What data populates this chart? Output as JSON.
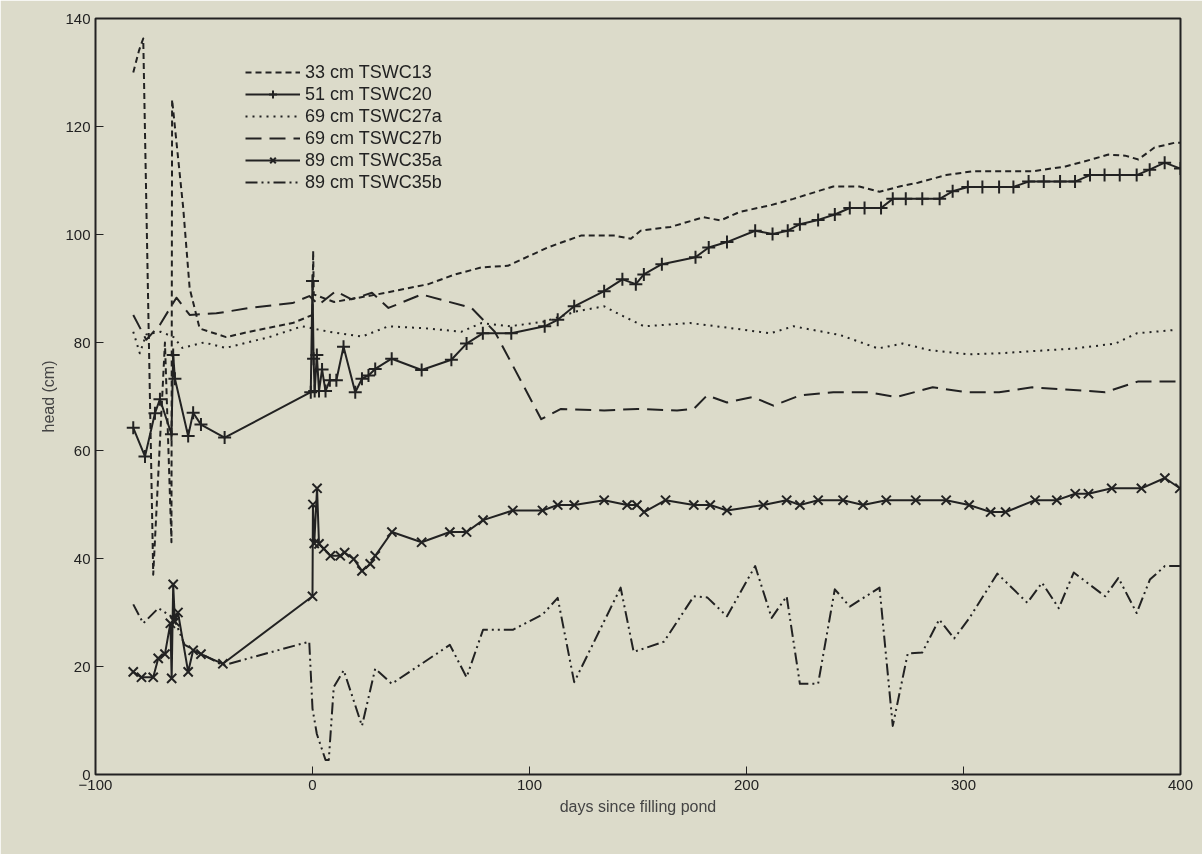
{
  "chart_data": {
    "type": "line",
    "xlabel": "days since filling pond",
    "ylabel": "head (cm)",
    "xlim": [
      -100,
      400
    ],
    "ylim": [
      0,
      140
    ],
    "xticks": [
      -100,
      0,
      100,
      200,
      300,
      400
    ],
    "yticks": [
      0,
      20,
      40,
      60,
      80,
      100,
      120,
      140
    ],
    "grid": false,
    "legend": "top left",
    "series": [
      {
        "name": "33 cm TSWC13",
        "color": "#222222",
        "line_style": "dashed",
        "marker": "none",
        "x": [
          -82.6,
          -80,
          -78,
          -73.4,
          -68,
          -65,
          -64.7,
          -59.6,
          -56.6,
          -52,
          -39.8,
          -29,
          -9.2,
          0,
          0.3,
          0.6,
          10,
          29.7,
          53.4,
          65.6,
          77.8,
          90,
          108.4,
          123.7,
          139,
          146.7,
          151.2,
          165,
          180.3,
          188,
          197,
          210.9,
          221.6,
          240,
          252,
          261.3,
          270.5,
          279,
          292,
          304,
          331.7,
          347,
          359,
          366.8,
          374.5,
          380.6,
          388,
          397.4,
          400
        ],
        "values": [
          130,
          134,
          136.3,
          37,
          80,
          43,
          125,
          105,
          90,
          82.6,
          81,
          82,
          83.6,
          85.1,
          97,
          88.9,
          87.5,
          88.9,
          90.8,
          92.6,
          93.9,
          94.2,
          97.6,
          99.8,
          99.8,
          99.2,
          100.7,
          101.4,
          103.2,
          102.6,
          104.2,
          105.4,
          106.6,
          108.9,
          108.9,
          107.9,
          108.9,
          109.6,
          111,
          111.7,
          111.7,
          112.6,
          113.9,
          114.8,
          114.6,
          113.9,
          116.1,
          117,
          117
        ]
      },
      {
        "name": "51 cm TSWC20",
        "color": "#222222",
        "line_style": "solid",
        "marker": "cross",
        "x": [
          -82.6,
          -77.2,
          -72.6,
          -70.3,
          -65,
          -64.2,
          -63.4,
          -57.3,
          -55,
          -51.4,
          -40.5,
          -0.8,
          0,
          0.5,
          1,
          2,
          3,
          4.4,
          6,
          8,
          11,
          14.3,
          19.7,
          22.8,
          25.8,
          28.9,
          36.5,
          50.3,
          64,
          71,
          78.5,
          91.6,
          107,
          113,
          120.6,
          134.4,
          142.8,
          149,
          152.7,
          161,
          176.5,
          182.6,
          191,
          204,
          212,
          219,
          224.6,
          233,
          240.7,
          247.6,
          254.4,
          262,
          267.4,
          273.4,
          281,
          289,
          295,
          302,
          308.7,
          316.4,
          323,
          330,
          337,
          344.5,
          351.4,
          358.3,
          365,
          372,
          379.8,
          385.8,
          392.7,
          400
        ],
        "values": [
          64.2,
          58.9,
          66.9,
          69.5,
          63,
          77.7,
          73.3,
          62.7,
          67,
          64.8,
          62.4,
          70.8,
          91.4,
          77,
          71,
          77.7,
          71,
          75,
          71,
          73,
          73,
          79.2,
          70.8,
          73.3,
          73.9,
          75.1,
          77,
          74.9,
          76.8,
          79.8,
          81.7,
          81.7,
          83,
          84.2,
          86.7,
          89.5,
          91.7,
          90.8,
          92.6,
          94.5,
          95.8,
          97.6,
          98.6,
          100.7,
          100.1,
          100.7,
          101.9,
          102.7,
          103.7,
          104.9,
          104.9,
          104.9,
          106.6,
          106.6,
          106.6,
          106.6,
          108,
          108.8,
          108.8,
          108.8,
          108.8,
          109.8,
          109.8,
          109.8,
          109.8,
          111,
          111,
          111,
          111,
          112,
          113.3,
          112.2
        ]
      },
      {
        "name": "69 cm TSWC27a",
        "color": "#222222",
        "line_style": "dotted",
        "marker": "none",
        "x": [
          -82.6,
          -79.6,
          -76.6,
          -70,
          -64,
          -60,
          -50,
          -40,
          -20,
          -4.7,
          7.5,
          22.8,
          35,
          53,
          68.7,
          77.8,
          91,
          107,
          122,
          134.4,
          142,
          152.8,
          174,
          194,
          210.9,
          221.6,
          243,
          260.6,
          272,
          284.3,
          302.6,
          316.4,
          351.5,
          370,
          379.8,
          396.7
        ],
        "values": [
          82,
          78,
          81.5,
          82,
          81,
          79,
          80,
          79,
          81,
          83,
          82,
          81.1,
          83,
          82.6,
          82,
          83.6,
          83,
          83.9,
          85.8,
          86.7,
          85.1,
          83,
          83.6,
          82.6,
          81.7,
          83,
          81.4,
          78.9,
          79.8,
          78.6,
          77.8,
          78,
          78.9,
          79.8,
          81.7,
          82.3
        ]
      },
      {
        "name": "69 cm TSWC27b",
        "color": "#222222",
        "line_style": "longdash",
        "marker": "none",
        "x": [
          -82.6,
          -76.6,
          -70.3,
          -62.7,
          -56.6,
          -44.3,
          -29,
          -9.2,
          -1.5,
          2.9,
          10.6,
          18,
          27.4,
          35,
          50.3,
          59.5,
          73.3,
          84,
          105.4,
          114.5,
          134.4,
          149.7,
          168,
          175.7,
          181.8,
          191,
          203,
          212.4,
          224.6,
          240,
          256,
          269,
          285.8,
          301,
          316.4,
          331.7,
          347,
          365.3,
          380.6,
          398
        ],
        "values": [
          85.1,
          80.5,
          83.3,
          88.3,
          85.1,
          85.4,
          86.4,
          87.3,
          88.6,
          87,
          89.5,
          88,
          89.2,
          86.4,
          88.9,
          87.9,
          86.4,
          82,
          65.8,
          67.7,
          67.4,
          67.7,
          67.4,
          67.7,
          70.2,
          68.9,
          69.9,
          68.3,
          70.2,
          70.8,
          70.8,
          69.9,
          71.7,
          70.8,
          70.8,
          71.7,
          71.3,
          70.8,
          72.8,
          72.8
        ]
      },
      {
        "name": "89 cm TSWC35a",
        "color": "#222222",
        "line_style": "solid",
        "marker": "x",
        "x": [
          -82.6,
          -78.8,
          -73.4,
          -71.1,
          -68,
          -65.5,
          -64.9,
          -64.2,
          -63.4,
          -62,
          -57.3,
          -55,
          -51.4,
          -41.3,
          0,
          0.2,
          0.8,
          2.1,
          3,
          5.2,
          8.3,
          12.8,
          14.8,
          19,
          22.8,
          26.6,
          28.9,
          36.6,
          50.3,
          63.3,
          71,
          78.6,
          92.3,
          106,
          113,
          120.6,
          134.4,
          145,
          149.5,
          152.8,
          162.7,
          175.7,
          183.3,
          191,
          207.8,
          218.5,
          224.6,
          233,
          244.5,
          253.7,
          264.4,
          278,
          292,
          302.6,
          312.5,
          319.4,
          333,
          343,
          351.5,
          357.6,
          368.3,
          382,
          392.8,
          399.7
        ],
        "values": [
          19,
          18,
          18,
          21.5,
          22.3,
          28,
          17.8,
          35.2,
          28.3,
          30,
          19,
          23,
          22.3,
          20.5,
          33,
          50,
          42.8,
          53,
          42.7,
          41.8,
          40.5,
          40.5,
          41.1,
          39.9,
          37.7,
          39,
          40.5,
          44.9,
          43,
          44.9,
          44.9,
          47.1,
          48.9,
          48.9,
          49.9,
          49.9,
          50.8,
          49.9,
          49.9,
          48.6,
          50.8,
          49.9,
          49.9,
          48.9,
          49.9,
          50.8,
          49.9,
          50.8,
          50.8,
          49.9,
          50.8,
          50.8,
          50.8,
          49.9,
          48.6,
          48.6,
          50.8,
          50.8,
          52,
          52,
          53,
          53,
          54.9,
          53
        ]
      },
      {
        "name": "89 cm TSWC35b",
        "color": "#222222",
        "line_style": "dashdot",
        "marker": "none",
        "x": [
          -82.6,
          -78,
          -71,
          -64,
          -58.9,
          -41.3,
          -1.5,
          0,
          2,
          6,
          7.5,
          9.8,
          14.4,
          22.8,
          28.9,
          36.5,
          63.3,
          71,
          78.6,
          92.3,
          106,
          113,
          120.6,
          142,
          148,
          162,
          175.7,
          181.9,
          191,
          204,
          211.6,
          218.5,
          224.6,
          233,
          240.7,
          247.6,
          261.3,
          267.4,
          274.3,
          281,
          288.8,
          295.7,
          302.6,
          315.6,
          329.4,
          336.2,
          343.9,
          350.8,
          365.3,
          371.4,
          379.8,
          385.9,
          392.8,
          399.7
        ],
        "values": [
          31.5,
          28,
          30.8,
          29,
          24,
          20.2,
          24.6,
          12.2,
          7.5,
          2.7,
          2.7,
          16.2,
          19.3,
          9,
          19.6,
          16.8,
          24,
          18,
          26.8,
          26.8,
          29.6,
          32.7,
          17.1,
          34.6,
          22.7,
          24.6,
          33,
          32.8,
          29.3,
          38.6,
          29,
          33,
          16.8,
          16.8,
          34.3,
          31.1,
          34.6,
          9,
          22.4,
          22.6,
          28.7,
          25.2,
          28.9,
          37.2,
          31.8,
          35.5,
          30.8,
          37.4,
          33,
          36.4,
          29.9,
          36.1,
          38.6,
          38.6
        ]
      }
    ]
  }
}
